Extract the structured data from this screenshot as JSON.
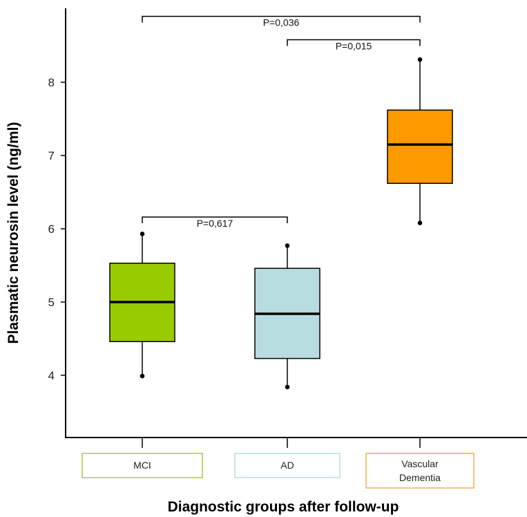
{
  "chart_data": {
    "type": "box",
    "xlabel": "Diagnostic groups after follow-up",
    "ylabel": "Plasmatic neurosin level (ng/ml)",
    "yticks": [
      4,
      5,
      6,
      7,
      8
    ],
    "ylim": [
      3.0,
      9.0
    ],
    "grid": false,
    "legend": "none",
    "groups": [
      {
        "label_lines": [
          "MCI"
        ],
        "min": 3.99,
        "q1": 4.46,
        "median": 5.0,
        "q3": 5.53,
        "max": 5.93,
        "fill": "#99cc00",
        "label_border": "#aacc33"
      },
      {
        "label_lines": [
          "AD"
        ],
        "min": 3.84,
        "q1": 4.23,
        "median": 4.84,
        "q3": 5.46,
        "max": 5.77,
        "fill": "#b8dde1",
        "label_border": "#b8dde1"
      },
      {
        "label_lines": [
          "Vascular",
          "Dementia"
        ],
        "min": 6.08,
        "q1": 6.62,
        "median": 7.15,
        "q3": 7.62,
        "max": 8.31,
        "fill": "#ff9900",
        "label_border": "#f2b24c"
      }
    ],
    "comparisons": [
      {
        "from": 0,
        "to": 2,
        "label": "P=0,036",
        "y": 8.9
      },
      {
        "from": 1,
        "to": 2,
        "label": "P=0,015",
        "y": 8.58
      },
      {
        "from": 0,
        "to": 1,
        "label": "P=0,617",
        "y": 6.16
      }
    ]
  }
}
